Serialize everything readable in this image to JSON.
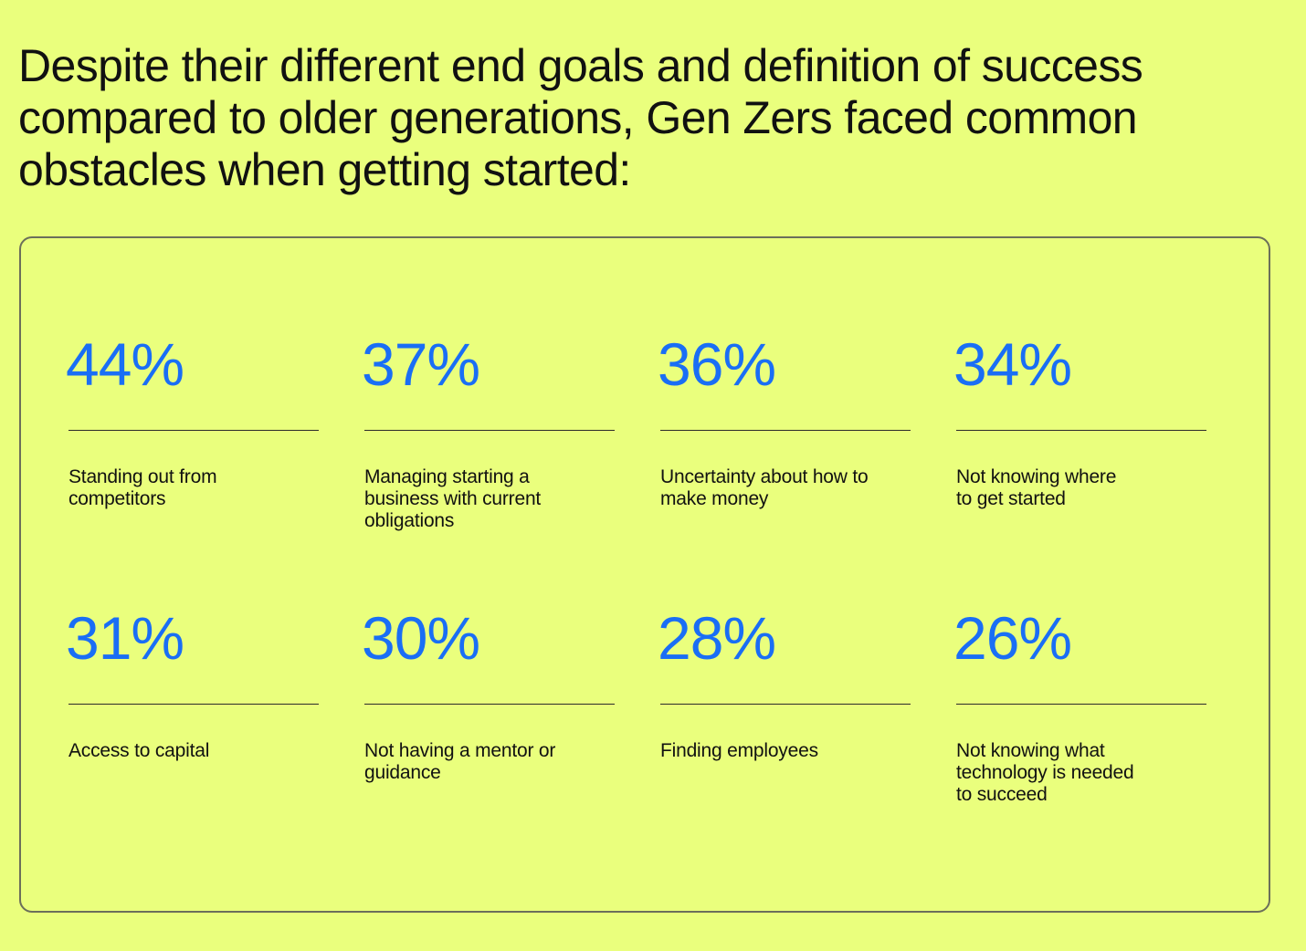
{
  "headline": {
    "lines": [
      "Despite their different end goals and definition of success",
      "compared to older generations, Gen Zers faced common",
      "obstacles when getting started:"
    ]
  },
  "stats": [
    {
      "value": "44%",
      "label_lines": [
        "Standing out from",
        "competitors"
      ]
    },
    {
      "value": "37%",
      "label_lines": [
        "Managing starting a",
        "business with current",
        "obligations"
      ]
    },
    {
      "value": "36%",
      "label_lines": [
        "Uncertainty about how to",
        "make money"
      ]
    },
    {
      "value": "34%",
      "label_lines": [
        "Not knowing where",
        "to get started"
      ]
    },
    {
      "value": "31%",
      "label_lines": [
        "Access to capital"
      ]
    },
    {
      "value": "30%",
      "label_lines": [
        "Not having a mentor or",
        "guidance"
      ]
    },
    {
      "value": "28%",
      "label_lines": [
        "Finding employees"
      ]
    },
    {
      "value": "26%",
      "label_lines": [
        "Not knowing what",
        "technology is needed",
        "to succeed"
      ]
    }
  ],
  "colors": {
    "background": "#eaff7d",
    "accent": "#1a6ef5",
    "text": "#111111",
    "border": "#6b6f5a"
  }
}
